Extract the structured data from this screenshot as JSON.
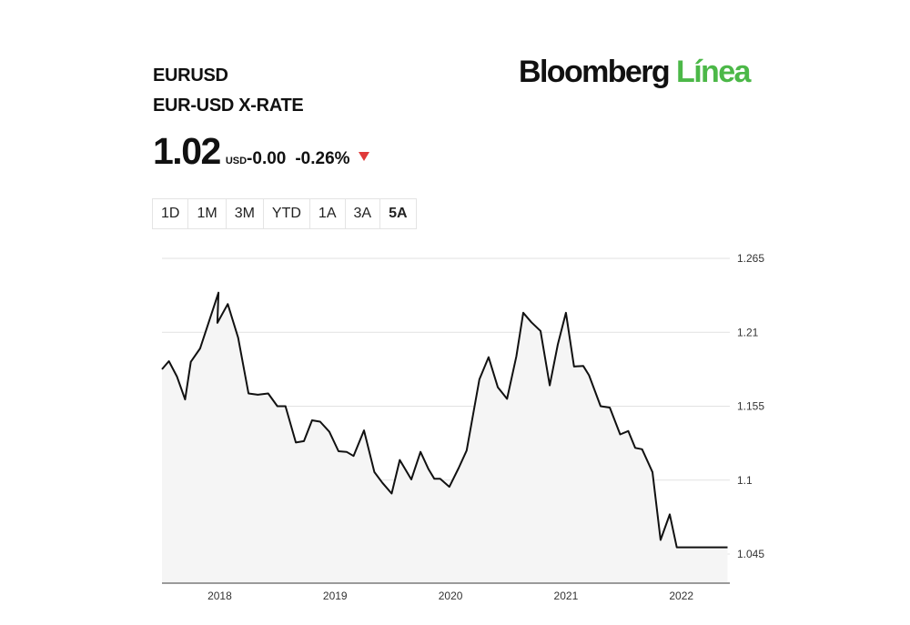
{
  "header": {
    "ticker": "EURUSD",
    "name": "EUR-USD X-RATE",
    "price": "1.02",
    "currency": "USD",
    "change": "-0.00",
    "change_pct": "-0.26%",
    "direction_icon": "down-triangle-icon"
  },
  "logo": {
    "main": "Bloomberg",
    "accent": "Línea",
    "accent_color": "#4cb848"
  },
  "range_tabs": [
    {
      "label": "1D",
      "active": false
    },
    {
      "label": "1M",
      "active": false
    },
    {
      "label": "3M",
      "active": false
    },
    {
      "label": "YTD",
      "active": false
    },
    {
      "label": "1A",
      "active": false
    },
    {
      "label": "3A",
      "active": false
    },
    {
      "label": "5A",
      "active": true
    }
  ],
  "colors": {
    "line": "#111111",
    "area": "#f5f5f5",
    "grid": "#e2e2e2",
    "down": "#e03a3a"
  },
  "chart_data": {
    "type": "area",
    "x_ticks": [
      2018,
      2019,
      2020,
      2021,
      2022
    ],
    "y_ticks": [
      "1.265",
      "1.21",
      "1.155",
      "1.1",
      "1.045"
    ],
    "ylim": [
      1.045,
      1.265
    ],
    "xlim": [
      2017.5,
      2022.42
    ],
    "grid": "horizontal",
    "series": [
      {
        "x": [
          2017.5,
          2017.56,
          2017.63,
          2017.7,
          2017.75,
          2017.83,
          2017.99,
          2017.98,
          2018.07,
          2018.16,
          2018.25,
          2018.33,
          2018.42,
          2018.5,
          2018.57,
          2018.66,
          2018.73,
          2018.8,
          2018.87,
          2018.95,
          2019.03,
          2019.1,
          2019.16,
          2019.25,
          2019.34,
          2019.41,
          2019.49,
          2019.56,
          2019.66,
          2019.74,
          2019.81,
          2019.86,
          2019.91,
          2019.99,
          2020.07,
          2020.14,
          2020.25,
          2020.33,
          2020.41,
          2020.49,
          2020.57,
          2020.63,
          2020.7,
          2020.78,
          2020.86,
          2020.93,
          2021.0,
          2021.07,
          2021.15,
          2021.2,
          2021.3,
          2021.38,
          2021.47,
          2021.54,
          2021.6,
          2021.66,
          2021.75,
          2021.82,
          2021.9,
          2021.96,
          2022.03,
          2022.09,
          2022.15,
          2022.2,
          2022.27,
          2022.34,
          2022.4
        ],
        "y": [
          1.1825,
          1.1885,
          1.177,
          1.16,
          1.188,
          1.198,
          1.2395,
          1.217,
          1.231,
          1.206,
          1.1645,
          1.1635,
          1.1645,
          1.155,
          1.155,
          1.128,
          1.129,
          1.1445,
          1.1435,
          1.136,
          1.1215,
          1.121,
          1.118,
          1.137,
          1.106,
          1.098,
          1.09,
          1.115,
          1.1005,
          1.121,
          1.108,
          1.101,
          1.101,
          1.095,
          1.109,
          1.122,
          1.175,
          1.1915,
          1.169,
          1.1605,
          1.192,
          1.2245,
          1.2175,
          1.211,
          1.1705,
          1.201,
          1.2245,
          1.1845,
          1.185,
          1.178,
          1.155,
          1.154,
          1.134,
          1.1365,
          1.124,
          1.123,
          1.106,
          1.0555,
          1.0745,
          1.05,
          1.05,
          1.05,
          1.05,
          1.05,
          1.05,
          1.05,
          1.05
        ]
      }
    ]
  }
}
